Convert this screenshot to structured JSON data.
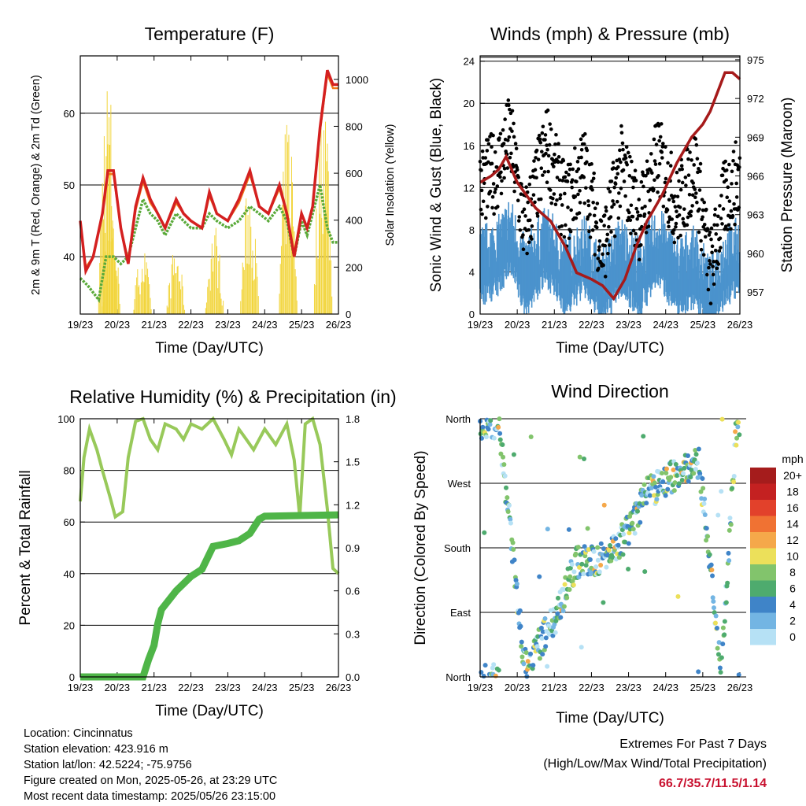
{
  "colors": {
    "temp2m": "#d42020",
    "temp9m": "#f07a1a",
    "dew": "#5aaa3a",
    "solar": "#f2d53c",
    "wind": "#4b93cd",
    "gust": "#000000",
    "pressure": "#a61a1a",
    "rh": "#98c95a",
    "precip": "#4fb548"
  },
  "info": {
    "location": "Location: Cincinnatus",
    "elevation": "Station elevation: 423.916 m",
    "latlon": "Station lat/lon: 42.5224; -75.9756",
    "created": "Figure created on Mon, 2025-05-26, at 23:29 UTC",
    "latest": "Most recent data timestamp: 2025/05/26 23:15:00"
  },
  "extremes": {
    "title": "Extremes For Past 7 Days",
    "subtitle": "(High/Low/Max Wind/Total Precipitation)",
    "values": "66.7/35.7/11.5/1.14"
  },
  "chart_data": [
    {
      "type": "line",
      "title": "Temperature (F)",
      "xlabel": "Time (Day/UTC)",
      "ylabel": "2m & 9m T (Red, Orange) & 2m Td (Green)",
      "ylabel_right": "Solar Insolation (Yellow)",
      "x": [
        "19/23",
        "20/23",
        "21/23",
        "22/23",
        "23/23",
        "24/23",
        "25/23",
        "26/23"
      ],
      "ylim": [
        32,
        68
      ],
      "yticks": [
        40,
        50,
        60
      ],
      "ylim_right": [
        0,
        1100
      ],
      "yticks_right": [
        0,
        200,
        400,
        600,
        800,
        1000
      ],
      "series": [
        {
          "name": "2m T (Red)",
          "points": [
            [
              0,
              45
            ],
            [
              0.15,
              38
            ],
            [
              0.35,
              40
            ],
            [
              0.6,
              46
            ],
            [
              0.75,
              52
            ],
            [
              0.9,
              52
            ],
            [
              1.1,
              44
            ],
            [
              1.3,
              39
            ],
            [
              1.5,
              47
            ],
            [
              1.7,
              51
            ],
            [
              1.9,
              48
            ],
            [
              2.1,
              46
            ],
            [
              2.3,
              44
            ],
            [
              2.6,
              48
            ],
            [
              2.8,
              46
            ],
            [
              3.0,
              45
            ],
            [
              3.3,
              44
            ],
            [
              3.5,
              49
            ],
            [
              3.7,
              46
            ],
            [
              4.0,
              45
            ],
            [
              4.3,
              48
            ],
            [
              4.6,
              52
            ],
            [
              4.85,
              47
            ],
            [
              5.1,
              46
            ],
            [
              5.4,
              50
            ],
            [
              5.6,
              46
            ],
            [
              5.8,
              40
            ],
            [
              6.0,
              46
            ],
            [
              6.15,
              44
            ],
            [
              6.3,
              47
            ],
            [
              6.5,
              58
            ],
            [
              6.7,
              66
            ],
            [
              6.85,
              64
            ],
            [
              7,
              64
            ]
          ]
        },
        {
          "name": "9m T (Orange)",
          "points": [
            [
              0,
              45
            ],
            [
              0.15,
              38.5
            ],
            [
              0.35,
              40
            ],
            [
              0.6,
              46
            ],
            [
              0.75,
              51.5
            ],
            [
              0.9,
              51.5
            ],
            [
              1.1,
              44
            ],
            [
              1.3,
              39.5
            ],
            [
              1.5,
              46.5
            ],
            [
              1.7,
              50.5
            ],
            [
              1.9,
              47.5
            ],
            [
              2.1,
              46
            ],
            [
              2.3,
              44
            ],
            [
              2.6,
              47.5
            ],
            [
              2.8,
              46
            ],
            [
              3.0,
              45
            ],
            [
              3.3,
              44
            ],
            [
              3.5,
              48.5
            ],
            [
              3.7,
              46
            ],
            [
              4.0,
              45
            ],
            [
              4.3,
              47.5
            ],
            [
              4.6,
              51.5
            ],
            [
              4.85,
              47
            ],
            [
              5.1,
              46
            ],
            [
              5.4,
              49.5
            ],
            [
              5.6,
              46
            ],
            [
              5.8,
              40.5
            ],
            [
              6.0,
              46
            ],
            [
              6.15,
              44
            ],
            [
              6.3,
              47
            ],
            [
              6.5,
              57.5
            ],
            [
              6.7,
              65.5
            ],
            [
              6.85,
              63.5
            ],
            [
              7,
              63.5
            ]
          ]
        },
        {
          "name": "2m Td (Green)",
          "points": [
            [
              0,
              37
            ],
            [
              0.2,
              36
            ],
            [
              0.5,
              34
            ],
            [
              0.7,
              40
            ],
            [
              0.9,
              40
            ],
            [
              1.1,
              39
            ],
            [
              1.3,
              40
            ],
            [
              1.5,
              44
            ],
            [
              1.7,
              48
            ],
            [
              1.9,
              46
            ],
            [
              2.1,
              45
            ],
            [
              2.3,
              43
            ],
            [
              2.6,
              46
            ],
            [
              2.8,
              45
            ],
            [
              3.0,
              44
            ],
            [
              3.3,
              44
            ],
            [
              3.5,
              46
            ],
            [
              3.7,
              45
            ],
            [
              4.0,
              44
            ],
            [
              4.3,
              45
            ],
            [
              4.6,
              47
            ],
            [
              4.85,
              46
            ],
            [
              5.1,
              45
            ],
            [
              5.4,
              47
            ],
            [
              5.6,
              45
            ],
            [
              5.8,
              40
            ],
            [
              6.0,
              45
            ],
            [
              6.15,
              43
            ],
            [
              6.3,
              46
            ],
            [
              6.5,
              50
            ],
            [
              6.7,
              44
            ],
            [
              6.85,
              42
            ],
            [
              7,
              42
            ]
          ]
        },
        {
          "name": "Solar Insolation (Yellow)",
          "points": [
            [
              0.75,
              1100
            ],
            [
              0.85,
              500
            ],
            [
              1.7,
              300
            ],
            [
              2.6,
              300
            ],
            [
              3.65,
              400
            ],
            [
              4.6,
              600
            ],
            [
              5.65,
              900
            ],
            [
              6.6,
              1100
            ]
          ]
        }
      ]
    },
    {
      "type": "line",
      "title": "Winds (mph) & Pressure (mb)",
      "xlabel": "Time (Day/UTC)",
      "ylabel": "Sonic Wind & Gust (Blue, Black)",
      "ylabel_right": "Station Pressure (Maroon)",
      "x": [
        "19/23",
        "20/23",
        "21/23",
        "22/23",
        "23/23",
        "24/23",
        "25/23",
        "26/23"
      ],
      "ylim": [
        0,
        24.5
      ],
      "yticks": [
        0,
        4,
        8,
        12,
        16,
        20,
        24
      ],
      "ylim_right": [
        955.3,
        975.3
      ],
      "yticks_right": [
        957,
        960,
        963,
        966,
        969,
        972,
        975
      ],
      "series": [
        {
          "name": "Sonic Wind (Blue)",
          "points": [
            [
              0,
              5
            ],
            [
              0.5,
              6
            ],
            [
              0.8,
              8
            ],
            [
              1.2,
              4
            ],
            [
              1.8,
              7
            ],
            [
              2.3,
              4
            ],
            [
              2.8,
              6
            ],
            [
              3.3,
              3
            ],
            [
              3.8,
              6
            ],
            [
              4.3,
              4
            ],
            [
              4.8,
              7
            ],
            [
              5.3,
              4
            ],
            [
              5.8,
              5
            ],
            [
              6.2,
              2
            ],
            [
              6.6,
              5
            ],
            [
              7,
              6
            ]
          ]
        },
        {
          "name": "Gust (Black)",
          "points": [
            [
              0,
              12
            ],
            [
              0.5,
              14
            ],
            [
              0.8,
              17
            ],
            [
              1.2,
              8
            ],
            [
              1.8,
              16
            ],
            [
              2.3,
              10
            ],
            [
              2.8,
              14
            ],
            [
              3.3,
              6
            ],
            [
              3.8,
              14
            ],
            [
              4.3,
              9
            ],
            [
              4.8,
              15
            ],
            [
              5.3,
              10
            ],
            [
              5.8,
              14
            ],
            [
              6.2,
              4
            ],
            [
              6.6,
              11
            ],
            [
              7,
              13
            ]
          ]
        },
        {
          "name": "Station Pressure (Maroon)",
          "points": [
            [
              0,
              965.5
            ],
            [
              0.3,
              966
            ],
            [
              0.5,
              966.5
            ],
            [
              0.7,
              967.5
            ],
            [
              1.0,
              965.5
            ],
            [
              1.5,
              963.5
            ],
            [
              1.9,
              962.5
            ],
            [
              2.3,
              960.5
            ],
            [
              2.6,
              958.5
            ],
            [
              3.0,
              958
            ],
            [
              3.3,
              957.5
            ],
            [
              3.6,
              956.5
            ],
            [
              3.9,
              958
            ],
            [
              4.2,
              960.5
            ],
            [
              4.5,
              962.5
            ],
            [
              4.9,
              964.5
            ],
            [
              5.3,
              967
            ],
            [
              5.7,
              969
            ],
            [
              6.0,
              970
            ],
            [
              6.2,
              971
            ],
            [
              6.4,
              972.5
            ],
            [
              6.6,
              974
            ],
            [
              6.8,
              974
            ],
            [
              7,
              973.5
            ]
          ]
        }
      ]
    },
    {
      "type": "line",
      "title": "Relative Humidity (%) & Precipitation (in)",
      "xlabel": "Time (Day/UTC)",
      "ylabel": "Percent & Total Rainfall",
      "x": [
        "19/23",
        "20/23",
        "21/23",
        "22/23",
        "23/23",
        "24/23",
        "25/23",
        "26/23"
      ],
      "ylim": [
        0,
        100
      ],
      "yticks": [
        0,
        20,
        40,
        60,
        80,
        100
      ],
      "ylim_right": [
        0,
        1.8
      ],
      "yticks_right": [
        "0.0",
        "0.3",
        "0.6",
        "0.9",
        "1.2",
        "1.5",
        "1.8"
      ],
      "series": [
        {
          "name": "Relative Humidity",
          "points": [
            [
              0,
              68
            ],
            [
              0.1,
              85
            ],
            [
              0.25,
              96
            ],
            [
              0.45,
              88
            ],
            [
              0.6,
              80
            ],
            [
              0.8,
              70
            ],
            [
              0.95,
              62
            ],
            [
              1.15,
              64
            ],
            [
              1.3,
              85
            ],
            [
              1.5,
              99
            ],
            [
              1.7,
              100
            ],
            [
              1.9,
              92
            ],
            [
              2.1,
              88
            ],
            [
              2.3,
              98
            ],
            [
              2.6,
              96
            ],
            [
              2.8,
              92
            ],
            [
              3.0,
              98
            ],
            [
              3.3,
              96
            ],
            [
              3.6,
              100
            ],
            [
              3.9,
              92
            ],
            [
              4.1,
              86
            ],
            [
              4.3,
              96
            ],
            [
              4.5,
              92
            ],
            [
              4.7,
              88
            ],
            [
              5.0,
              96
            ],
            [
              5.3,
              90
            ],
            [
              5.6,
              98
            ],
            [
              5.8,
              84
            ],
            [
              5.95,
              62
            ],
            [
              6.1,
              98
            ],
            [
              6.3,
              100
            ],
            [
              6.5,
              90
            ],
            [
              6.7,
              65
            ],
            [
              6.85,
              42
            ],
            [
              7,
              40
            ]
          ]
        },
        {
          "name": "Total Rainfall",
          "points": [
            [
              0,
              0
            ],
            [
              1.7,
              0
            ],
            [
              1.85,
              0.12
            ],
            [
              2.0,
              0.22
            ],
            [
              2.1,
              0.37
            ],
            [
              2.2,
              0.47
            ],
            [
              2.6,
              0.6
            ],
            [
              3.0,
              0.7
            ],
            [
              3.3,
              0.75
            ],
            [
              3.6,
              0.91
            ],
            [
              4.0,
              0.93
            ],
            [
              4.3,
              0.95
            ],
            [
              4.6,
              1.0
            ],
            [
              4.85,
              1.1
            ],
            [
              5.0,
              1.12
            ],
            [
              7,
              1.13
            ]
          ]
        }
      ]
    },
    {
      "type": "scatter",
      "title": "Wind Direction",
      "xlabel": "Time (Day/UTC)",
      "ylabel": "Direction (Colored By Speed)",
      "x": [
        "19/23",
        "20/23",
        "21/23",
        "22/23",
        "23/23",
        "24/23",
        "25/23",
        "26/23"
      ],
      "yticks": [
        "North",
        "East",
        "South",
        "West",
        "North"
      ],
      "ylim": [
        0,
        360
      ],
      "legend": {
        "title": "mph",
        "labels": [
          "20+",
          "18",
          "16",
          "14",
          "12",
          "10",
          "8",
          "6",
          "4",
          "2",
          "0"
        ],
        "colors": [
          "#a51c1c",
          "#c42121",
          "#e2412b",
          "#f07233",
          "#f5a84a",
          "#ece05a",
          "#82c46c",
          "#4eab6e",
          "#3f84c8",
          "#73b5e3",
          "#b6e1f5"
        ]
      },
      "series": [
        {
          "name": "direction",
          "points": [
            [
              0.5,
              355
            ],
            [
              1.2,
              15
            ],
            [
              2.0,
              80
            ],
            [
              2.6,
              160
            ],
            [
              3.3,
              165
            ],
            [
              3.9,
              195
            ],
            [
              4.5,
              255
            ],
            [
              5.2,
              280
            ],
            [
              5.9,
              300
            ],
            [
              6.5,
              10
            ],
            [
              6.9,
              345
            ]
          ]
        }
      ]
    }
  ]
}
